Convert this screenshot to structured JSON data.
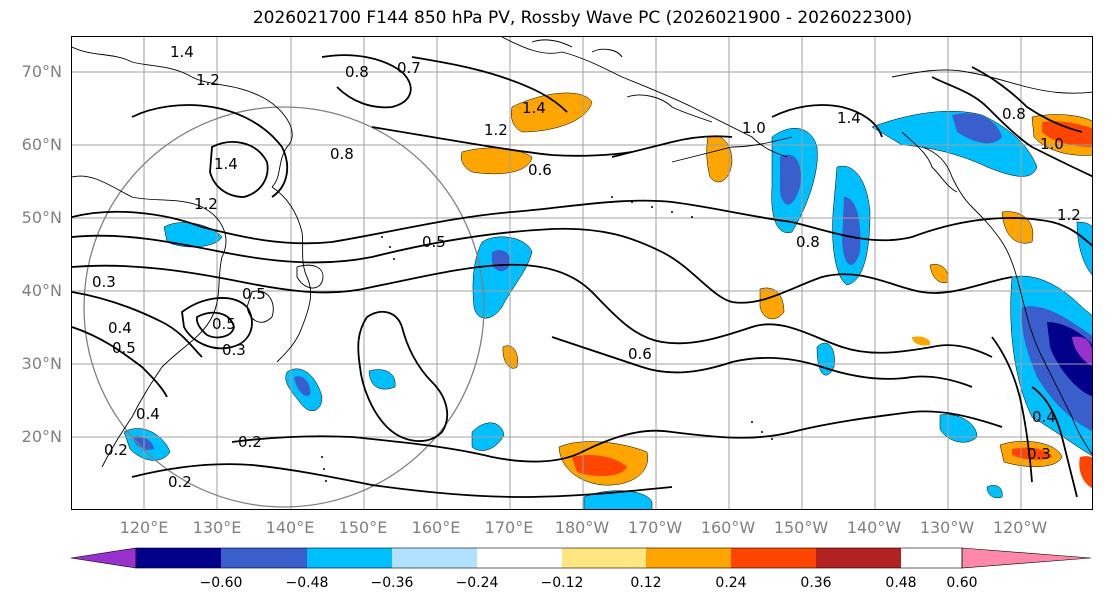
{
  "title": "2026021700 F144 850 hPa PV, Rossby Wave PC (2026021900 - 2026022300)",
  "lat_labels": [
    "70°N",
    "60°N",
    "50°N",
    "40°N",
    "30°N",
    "20°N"
  ],
  "lon_labels": [
    "120°E",
    "130°E",
    "140°E",
    "150°E",
    "160°E",
    "170°E",
    "180°W",
    "170°W",
    "160°W",
    "150°W",
    "140°W",
    "130°W",
    "120°W"
  ],
  "contour_labels": [
    "1.4",
    "1.2",
    "0.8",
    "0.7",
    "1.4",
    "1.2",
    "1.4",
    "1.2",
    "0.8",
    "0.6",
    "1.0",
    "1.4",
    "0.8",
    "0.6",
    "0.5",
    "0.5",
    "0.3",
    "0.4",
    "0.5",
    "0.5",
    "0.3",
    "0.4",
    "0.2",
    "0.2",
    "0.2",
    "0.3",
    "0.4",
    "1.2",
    "1.0",
    "0.8"
  ],
  "colorbar": {
    "ticks": [
      "−0.60",
      "−0.48",
      "−0.36",
      "−0.24",
      "−0.12",
      "0.12",
      "0.24",
      "0.36",
      "0.48",
      "0.60"
    ],
    "colors": [
      "#9932cc",
      "#00008b",
      "#3a5fcd",
      "#00bfff",
      "#b0e2ff",
      "#ffffff",
      "#ffe680",
      "#ffa500",
      "#ff4500",
      "#b22222",
      "#ff88aa"
    ]
  }
}
